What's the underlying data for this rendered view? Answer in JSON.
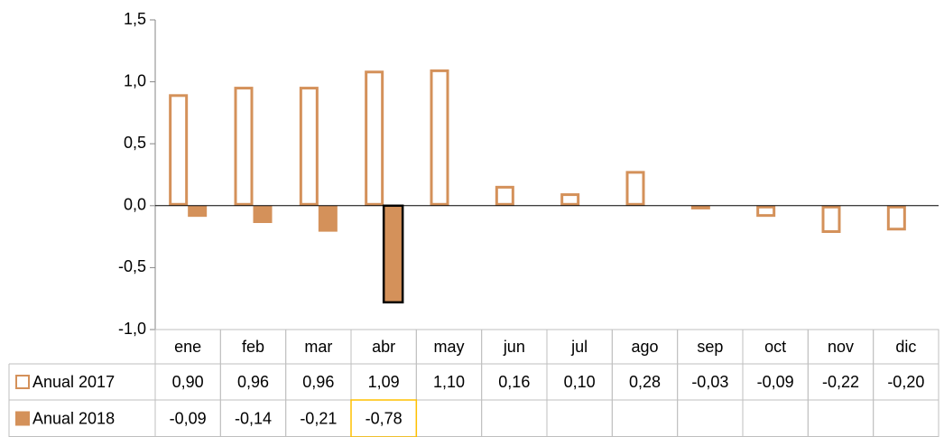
{
  "chart_data": {
    "type": "bar",
    "categories": [
      "ene",
      "feb",
      "mar",
      "abr",
      "may",
      "jun",
      "jul",
      "ago",
      "sep",
      "oct",
      "nov",
      "dic"
    ],
    "series": [
      {
        "name": "Anual 2017",
        "color": "#d4915a",
        "style": "outline",
        "values": [
          0.9,
          0.96,
          0.96,
          1.09,
          1.1,
          0.16,
          0.1,
          0.28,
          -0.03,
          -0.09,
          -0.22,
          -0.2
        ],
        "value_labels": [
          "0,90",
          "0,96",
          "0,96",
          "1,09",
          "1,10",
          "0,16",
          "0,10",
          "0,28",
          "-0,03",
          "-0,09",
          "-0,22",
          "-0,20"
        ]
      },
      {
        "name": "Anual 2018",
        "color": "#d4915a",
        "style": "filled",
        "values": [
          -0.09,
          -0.14,
          -0.21,
          -0.78,
          null,
          null,
          null,
          null,
          null,
          null,
          null,
          null
        ],
        "value_labels": [
          "-0,09",
          "-0,14",
          "-0,21",
          "-0,78",
          null,
          null,
          null,
          null,
          null,
          null,
          null,
          null
        ]
      }
    ],
    "highlight": {
      "series": 1,
      "index": 3
    },
    "ylim": [
      -1.0,
      1.5
    ],
    "yticks": [
      {
        "value": -1.0,
        "label": "-1,0"
      },
      {
        "value": -0.5,
        "label": "-0,5"
      },
      {
        "value": 0.0,
        "label": "0,0"
      },
      {
        "value": 0.5,
        "label": "0,5"
      },
      {
        "value": 1.0,
        "label": "1,0"
      },
      {
        "value": 1.5,
        "label": "1,5"
      }
    ]
  }
}
